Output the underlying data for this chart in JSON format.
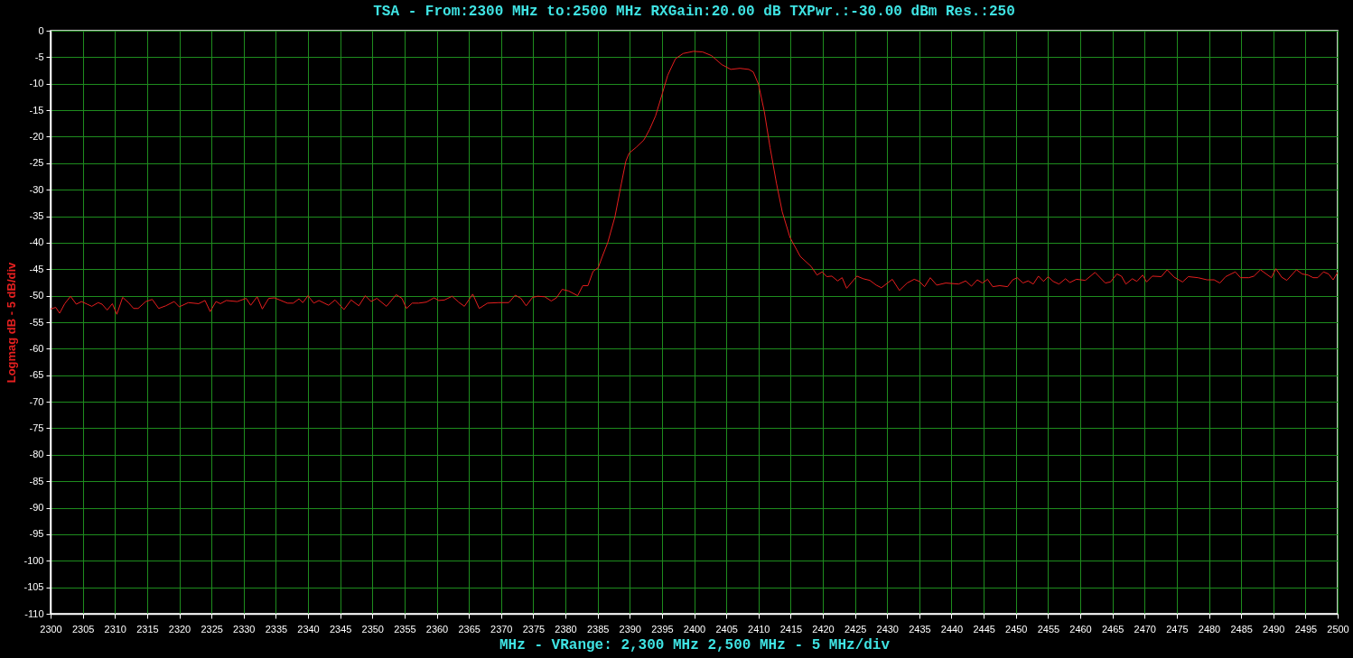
{
  "chart_data": {
    "type": "line",
    "title": "TSA - From:2300 MHz to:2500 MHz RXGain:20.00 dB TXPwr.:-30.00 dBm Res.:250",
    "xlabel": "MHz - VRange: 2,300 MHz 2,500 MHz - 5 MHz/div",
    "ylabel": "Logmag dB - 5 dB/div",
    "x": [
      2300,
      2300.8,
      2301.4,
      2302.2,
      2303.1,
      2304,
      2304.8,
      2305.7,
      2306.4,
      2307.4,
      2308,
      2308.8,
      2309.6,
      2310.3,
      2311.2,
      2312.1,
      2312.9,
      2313.6,
      2314.8,
      2315.8,
      2316.8,
      2317.9,
      2319.2,
      2320,
      2321.4,
      2323,
      2324,
      2324.8,
      2325.7,
      2326.4,
      2327.3,
      2329,
      2330.4,
      2331.1,
      2332.1,
      2332.9,
      2333.9,
      2334.8,
      2336.8,
      2337.7,
      2338.6,
      2339.2,
      2340,
      2340.9,
      2341.7,
      2343.2,
      2344.2,
      2345.6,
      2346.7,
      2347.9,
      2348.9,
      2349.8,
      2350.7,
      2352.2,
      2353.7,
      2354.6,
      2355.3,
      2356.2,
      2357.2,
      2358.4,
      2359.6,
      2360.3,
      2361.2,
      2362.4,
      2363.4,
      2364.3,
      2365.6,
      2366.6,
      2367.9,
      2369.6,
      2371.2,
      2372.2,
      2373.1,
      2373.9,
      2374.9,
      2375.7,
      2376.8,
      2377.8,
      2378.6,
      2379.5,
      2380.5,
      2381.9,
      2382.7,
      2383.5,
      2384.3,
      2385.1,
      2385.8,
      2386.6,
      2387.7,
      2388.7,
      2389.4,
      2389.9,
      2391.0,
      2392.2,
      2393.1,
      2394.0,
      2395.0,
      2395.9,
      2397.1,
      2398.3,
      2399.9,
      2401.3,
      2402.7,
      2404.3,
      2405.7,
      2407.1,
      2408.5,
      2409.2,
      2410.0,
      2410.9,
      2411.8,
      2412.8,
      2413.7,
      2414.9,
      2416.5,
      2418.2,
      2419.1,
      2419.9,
      2420.6,
      2421.4,
      2422.3,
      2423.0,
      2423.7,
      2425.3,
      2426.3,
      2427.3,
      2428.3,
      2429.1,
      2430.8,
      2431.9,
      2433.1,
      2434.2,
      2435.0,
      2435.8,
      2436.7,
      2437.7,
      2439.1,
      2441.1,
      2442.2,
      2443.1,
      2444.0,
      2444.8,
      2445.6,
      2446.4,
      2447.5,
      2448.7,
      2449.5,
      2450.2,
      2451.1,
      2451.9,
      2452.7,
      2453.5,
      2454.3,
      2455.0,
      2455.8,
      2456.7,
      2457.7,
      2458.4,
      2459.4,
      2460.8,
      2462.3,
      2463.9,
      2464.7,
      2465.7,
      2466.4,
      2467.1,
      2468.1,
      2468.8,
      2469.7,
      2470.3,
      2471.2,
      2472.6,
      2473.5,
      2474.6,
      2475.9,
      2476.8,
      2478.3,
      2479.7,
      2480.8,
      2481.7,
      2482.6,
      2484.1,
      2484.9,
      2486.2,
      2487.0,
      2488.0,
      2489.7,
      2490.4,
      2491.3,
      2492.1,
      2493.6,
      2494.5,
      2495.4,
      2496.2,
      2496.9,
      2497.8,
      2498.6,
      2499.3,
      2500
    ],
    "series": [
      {
        "color": "#e61e1e",
        "values": [
          -52.5,
          -52.2,
          -53.3,
          -51.5,
          -50.1,
          -51.6,
          -51.1,
          -51.6,
          -52.0,
          -51.3,
          -51.6,
          -52.7,
          -51.5,
          -53.5,
          -50.3,
          -51.3,
          -52.4,
          -52.4,
          -51.1,
          -50.7,
          -52.4,
          -51.9,
          -51.1,
          -52.1,
          -51.3,
          -51.5,
          -50.9,
          -53.0,
          -51.1,
          -51.5,
          -50.9,
          -51.1,
          -50.5,
          -51.8,
          -50.2,
          -52.5,
          -50.5,
          -50.4,
          -51.4,
          -51.4,
          -50.6,
          -51.3,
          -50.0,
          -51.4,
          -50.9,
          -51.8,
          -50.8,
          -52.6,
          -50.8,
          -51.9,
          -50.0,
          -51.1,
          -50.5,
          -52.0,
          -49.8,
          -50.5,
          -52.4,
          -51.4,
          -51.4,
          -51.2,
          -50.4,
          -50.9,
          -50.8,
          -50.1,
          -51.2,
          -52.0,
          -49.7,
          -52.4,
          -51.4,
          -51.3,
          -51.3,
          -49.9,
          -50.5,
          -51.9,
          -50.3,
          -50.1,
          -50.2,
          -51.0,
          -50.4,
          -48.8,
          -49.1,
          -50.0,
          -48.1,
          -48.1,
          -45.4,
          -44.7,
          -42.4,
          -39.9,
          -35.1,
          -28.8,
          -24.6,
          -23.1,
          -22.0,
          -20.6,
          -18.6,
          -16.1,
          -12.1,
          -8.4,
          -5.3,
          -4.3,
          -3.9,
          -4.0,
          -4.7,
          -6.4,
          -7.3,
          -7.1,
          -7.3,
          -7.8,
          -10.1,
          -15.2,
          -22.0,
          -28.8,
          -34.2,
          -39.0,
          -42.6,
          -44.5,
          -46.1,
          -45.5,
          -46.4,
          -46.3,
          -47.2,
          -46.6,
          -48.6,
          -46.3,
          -46.8,
          -47.1,
          -48.0,
          -48.5,
          -46.9,
          -49.0,
          -47.6,
          -46.9,
          -47.3,
          -48.3,
          -46.6,
          -48.0,
          -47.6,
          -47.8,
          -47.2,
          -48.2,
          -47.0,
          -47.6,
          -46.9,
          -48.3,
          -48.1,
          -48.3,
          -47.0,
          -46.6,
          -47.6,
          -47.2,
          -47.8,
          -46.3,
          -47.3,
          -46.4,
          -47.3,
          -47.8,
          -46.8,
          -47.5,
          -46.9,
          -47.1,
          -45.6,
          -47.6,
          -47.4,
          -45.9,
          -46.3,
          -47.8,
          -46.8,
          -47.3,
          -46.1,
          -47.4,
          -46.3,
          -46.4,
          -45.1,
          -46.5,
          -47.4,
          -46.4,
          -46.6,
          -47.0,
          -47.0,
          -47.6,
          -46.4,
          -45.5,
          -46.6,
          -46.6,
          -46.3,
          -45.1,
          -46.6,
          -44.9,
          -46.5,
          -47.1,
          -45.1,
          -45.9,
          -46.1,
          -46.6,
          -46.6,
          -45.5,
          -45.9,
          -47.0,
          -45.6
        ]
      }
    ],
    "xlim": [
      2300,
      2500
    ],
    "ylim": [
      -110,
      0
    ],
    "xticks": [
      2300,
      2305,
      2310,
      2315,
      2320,
      2325,
      2330,
      2335,
      2340,
      2345,
      2350,
      2355,
      2360,
      2365,
      2370,
      2375,
      2380,
      2385,
      2390,
      2395,
      2400,
      2405,
      2410,
      2415,
      2420,
      2425,
      2430,
      2435,
      2440,
      2445,
      2450,
      2455,
      2460,
      2465,
      2470,
      2475,
      2480,
      2485,
      2490,
      2495,
      2500
    ],
    "yticks": [
      0,
      -5,
      -10,
      -15,
      -20,
      -25,
      -30,
      -35,
      -40,
      -45,
      -50,
      -55,
      -60,
      -65,
      -70,
      -75,
      -80,
      -85,
      -90,
      -95,
      -100,
      -105,
      -110
    ],
    "grid": true,
    "marker": "none",
    "line_style": "solid"
  }
}
